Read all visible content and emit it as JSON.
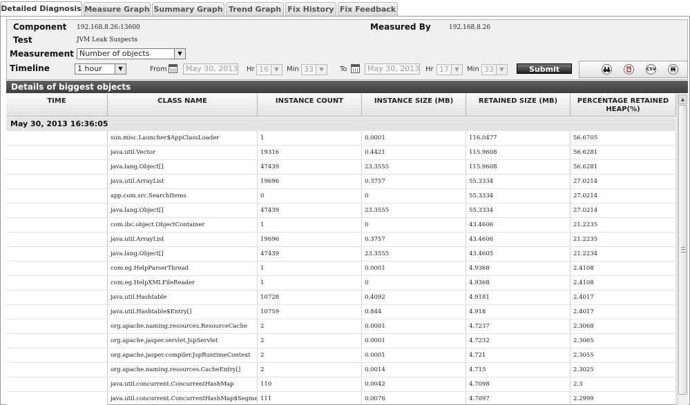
{
  "tabs": [
    {
      "label": "Detailed Diagnosis",
      "active": true
    },
    {
      "label": "Measure Graph",
      "active": false
    },
    {
      "label": "Summary Graph",
      "active": false
    },
    {
      "label": "Trend Graph",
      "active": false
    },
    {
      "label": "Fix History",
      "active": false
    },
    {
      "label": "Fix Feedback",
      "active": false
    }
  ],
  "form": {
    "component_label": "Component",
    "component_value": "192.168.8.26:13600",
    "measured_by_label": "Measured By",
    "measured_by_value": "192.168.8.26",
    "test_label": "Test",
    "test_value": "JVM Leak Suspects",
    "measurement_label": "Measurement",
    "measurement_value": "Number of objects",
    "timeline_label": "Timeline",
    "timeline_value": "1 hour",
    "from_label": "From",
    "from_date": "May 30, 2013",
    "from_hr_label": "Hr",
    "from_hr": "16",
    "from_min_label": "Min",
    "from_min": "33",
    "to_label": "To",
    "to_date": "May 30, 2013",
    "to_hr_label": "Hr",
    "to_hr": "17",
    "to_min_label": "Min",
    "to_min": "33",
    "submit_label": "Submit"
  },
  "toolbar": {
    "icons": [
      "binoculars-icon",
      "pdf-icon",
      "csv-icon",
      "print-icon"
    ],
    "csv_text": "CSV"
  },
  "section_title": "Details of biggest objects",
  "table": {
    "columns": [
      "TIME",
      "CLASS NAME",
      "INSTANCE COUNT",
      "INSTANCE SIZE (MB)",
      "RETAINED SIZE (MB)",
      "PERCENTAGE RETAINED HEAP(%)"
    ],
    "group_label": "May 30, 2013 16:36:05",
    "rows": [
      [
        "sun.misc.Launcher$AppClassLoader",
        "1",
        "0.0001",
        "116.0477",
        "56.6705"
      ],
      [
        "java.util.Vector",
        "19316",
        "0.4421",
        "115.9608",
        "56.6281"
      ],
      [
        "java.lang.Object[]",
        "47439",
        "23.3555",
        "115.9608",
        "56.6281"
      ],
      [
        "java.util.ArrayList",
        "19696",
        "0.3757",
        "55.3334",
        "27.0214"
      ],
      [
        "app.com.src.SearchItems",
        "0",
        "0",
        "55.3334",
        "27.0214"
      ],
      [
        "java.lang.Object[]",
        "47439",
        "23.3555",
        "55.3334",
        "27.0214"
      ],
      [
        "com.ibc.object.ObjectContainer",
        "1",
        "0",
        "43.4606",
        "21.2235"
      ],
      [
        "java.util.ArrayList",
        "19696",
        "0.3757",
        "43.4606",
        "21.2235"
      ],
      [
        "java.lang.Object[]",
        "47439",
        "23.3555",
        "43.4605",
        "21.2234"
      ],
      [
        "com.eg.HelpParserThread",
        "1",
        "0.0001",
        "4.9368",
        "2.4108"
      ],
      [
        "com.eg.HelpXMLFileReader",
        "1",
        "0",
        "4.9368",
        "2.4108"
      ],
      [
        "java.util.Hashtable",
        "10728",
        "0.4092",
        "4.9181",
        "2.4017"
      ],
      [
        "java.util.Hashtable$Entry[]",
        "10759",
        "0.844",
        "4.918",
        "2.4017"
      ],
      [
        "org.apache.naming.resources.ResourceCache",
        "2",
        "0.0001",
        "4.7237",
        "2.3068"
      ],
      [
        "org.apache.jasper.servlet.JspServlet",
        "2",
        "0.0001",
        "4.7232",
        "2.3065"
      ],
      [
        "org.apache.jasper.compiler.JspRuntimeContext",
        "2",
        "0.0001",
        "4.721",
        "2.3055"
      ],
      [
        "org.apache.naming.resources.CacheEntry[]",
        "2",
        "0.0014",
        "4.715",
        "2.3025"
      ],
      [
        "java.util.concurrent.ConcurrentHashMap",
        "110",
        "0.0042",
        "4.7098",
        "2.3"
      ],
      [
        "java.util.concurrent.ConcurrentHashMap$Segment[]",
        "111",
        "0.0076",
        "4.7097",
        "2.2999"
      ]
    ]
  }
}
